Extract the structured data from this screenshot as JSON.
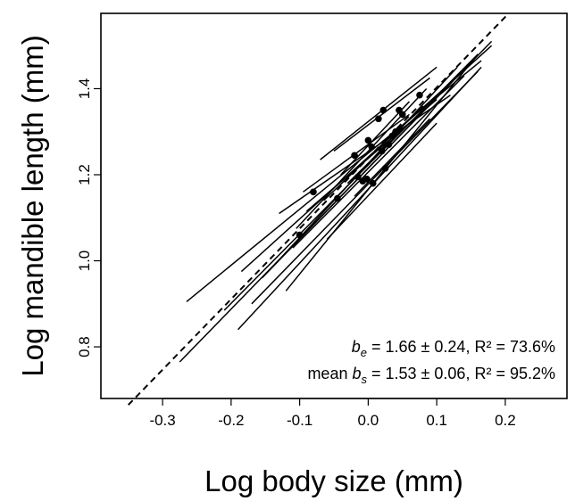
{
  "chart_data": {
    "type": "scatter",
    "title": "",
    "xlabel": "Log body size (mm)",
    "ylabel": "Log mandible length (mm)",
    "xlim": [
      -0.39,
      0.29
    ],
    "ylim": [
      0.68,
      1.575
    ],
    "xticks": [
      -0.3,
      -0.2,
      -0.1,
      0.0,
      0.1,
      0.2
    ],
    "xtick_labels": [
      "-0.3",
      "-0.2",
      "-0.1",
      "0.0",
      "0.1",
      "0.2"
    ],
    "yticks": [
      0.8,
      1.0,
      1.2,
      1.4
    ],
    "ytick_labels": [
      "0.8",
      "1.0",
      "1.2",
      "1.4"
    ],
    "grid": false,
    "points": [
      {
        "x": -0.1,
        "y": 1.06
      },
      {
        "x": -0.08,
        "y": 1.16
      },
      {
        "x": -0.045,
        "y": 1.145
      },
      {
        "x": -0.02,
        "y": 1.245
      },
      {
        "x": -0.015,
        "y": 1.195
      },
      {
        "x": -0.008,
        "y": 1.185
      },
      {
        "x": -0.002,
        "y": 1.19
      },
      {
        "x": 0.0,
        "y": 1.28
      },
      {
        "x": 0.005,
        "y": 1.265
      },
      {
        "x": 0.007,
        "y": 1.18
      },
      {
        "x": 0.015,
        "y": 1.33
      },
      {
        "x": 0.02,
        "y": 1.255
      },
      {
        "x": 0.022,
        "y": 1.35
      },
      {
        "x": 0.025,
        "y": 1.215
      },
      {
        "x": 0.03,
        "y": 1.27
      },
      {
        "x": 0.035,
        "y": 1.29
      },
      {
        "x": 0.04,
        "y": 1.3
      },
      {
        "x": 0.045,
        "y": 1.35
      },
      {
        "x": 0.05,
        "y": 1.34
      },
      {
        "x": 0.075,
        "y": 1.385
      }
    ],
    "species_lines": [
      {
        "x": [
          -0.265,
          0.165
        ],
        "y": [
          0.905,
          1.465
        ]
      },
      {
        "x": [
          -0.275,
          0.18
        ],
        "y": [
          0.765,
          1.51
        ]
      },
      {
        "x": [
          -0.21,
          0.16
        ],
        "y": [
          0.885,
          1.48
        ]
      },
      {
        "x": [
          -0.19,
          0.165
        ],
        "y": [
          0.84,
          1.45
        ]
      },
      {
        "x": [
          -0.185,
          0.18
        ],
        "y": [
          0.975,
          1.5
        ]
      },
      {
        "x": [
          -0.17,
          0.16
        ],
        "y": [
          0.9,
          1.44
        ]
      },
      {
        "x": [
          -0.155,
          0.155
        ],
        "y": [
          0.96,
          1.47
        ]
      },
      {
        "x": [
          -0.14,
          0.13
        ],
        "y": [
          0.985,
          1.45
        ]
      },
      {
        "x": [
          -0.13,
          0.12
        ],
        "y": [
          1.11,
          1.385
        ]
      },
      {
        "x": [
          -0.12,
          0.16
        ],
        "y": [
          0.93,
          1.48
        ]
      },
      {
        "x": [
          -0.11,
          0.14
        ],
        "y": [
          1.03,
          1.43
        ]
      },
      {
        "x": [
          -0.105,
          0.085
        ],
        "y": [
          1.075,
          1.4
        ]
      },
      {
        "x": [
          -0.095,
          0.06
        ],
        "y": [
          1.16,
          1.34
        ]
      },
      {
        "x": [
          -0.09,
          0.1
        ],
        "y": [
          1.115,
          1.375
        ]
      },
      {
        "x": [
          -0.07,
          0.1
        ],
        "y": [
          1.235,
          1.45
        ]
      },
      {
        "x": [
          -0.065,
          0.08
        ],
        "y": [
          1.14,
          1.36
        ]
      },
      {
        "x": [
          -0.05,
          0.09
        ],
        "y": [
          1.255,
          1.425
        ]
      },
      {
        "x": [
          -0.06,
          0.1
        ],
        "y": [
          1.05,
          1.32
        ]
      },
      {
        "x": [
          -0.04,
          0.06
        ],
        "y": [
          1.2,
          1.37
        ]
      },
      {
        "x": [
          -0.03,
          0.06
        ],
        "y": [
          1.18,
          1.32
        ]
      },
      {
        "x": [
          -0.02,
          0.09
        ],
        "y": [
          1.15,
          1.33
        ]
      }
    ],
    "fit_line": {
      "style": "dashed",
      "x": [
        -0.35,
        0.205
      ],
      "y": [
        0.665,
        1.575
      ]
    },
    "annotations": [
      {
        "b": "b",
        "sub": "e",
        "rest": " = 1.66 ± 0.24, R² = 73.6%"
      },
      {
        "prefix": "mean ",
        "b": "b",
        "sub": "s",
        "rest": " = 1.53 ± 0.06, R² = 95.2%"
      }
    ]
  }
}
